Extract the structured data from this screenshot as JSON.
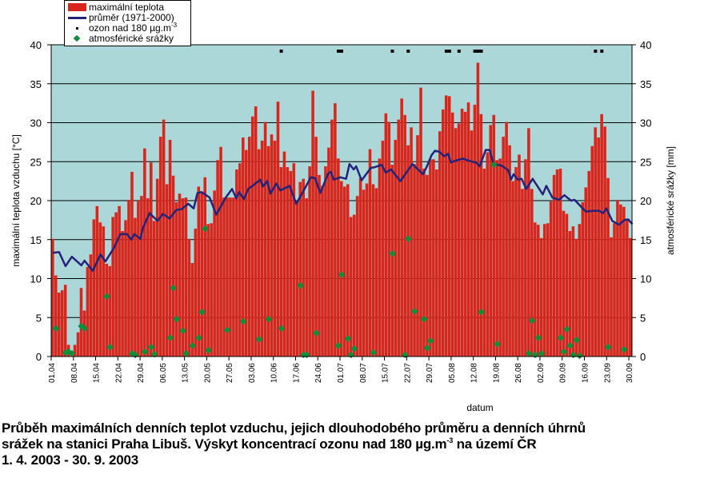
{
  "chart_data": {
    "type": "bar",
    "title": "",
    "xlabel": "datum",
    "ylabel": "maximální teplota vzduchu [°C]",
    "y2label": "atmosférické srážky [mm]",
    "ylim": [
      0,
      40
    ],
    "y2lim": [
      0,
      40
    ],
    "yticks": [
      "0",
      "5",
      "10",
      "15",
      "20",
      "25",
      "30",
      "35",
      "40"
    ],
    "grid": true,
    "legend_placement": "top-left",
    "colors": {
      "bars": "#d9261c",
      "avg": "#23237a",
      "ozone": "#000000",
      "precip": "#0b8f3a",
      "plot_bg": "#acd7d8"
    },
    "xtick_labels": [
      "01.04",
      "08.04",
      "15.04",
      "22.04",
      "29.04",
      "06.05",
      "13.05",
      "20.05",
      "27.05",
      "03.06",
      "10.06",
      "17.06",
      "24.06",
      "01.07",
      "08.07",
      "15.07",
      "22.07",
      "29.07",
      "05.08",
      "12.08",
      "19.08",
      "26.08",
      "02.09",
      "09.09",
      "16.09",
      "23.09",
      "30.09"
    ],
    "legend": {
      "max_temp": "maximální teplota",
      "avg": "průměr (1971-2000)",
      "ozone": "ozon nad 180 µg.m",
      "ozone_sup": "-3",
      "precip": "atmosférické srážky"
    },
    "max_temp": [
      15.1,
      10.4,
      8.2,
      8.5,
      9.2,
      1.5,
      0,
      1.5,
      3.1,
      8.8,
      5.9,
      11.5,
      13.1,
      17.6,
      19.3,
      17.2,
      16.7,
      11.9,
      11.6,
      17.9,
      18.5,
      19.3,
      16.1,
      17.5,
      20.1,
      23.7,
      17.8,
      20.0,
      20.6,
      26.7,
      20.3,
      24.9,
      17.4,
      22.8,
      28.2,
      30.4,
      22.1,
      27.8,
      23.2,
      19.8,
      20.9,
      20.3,
      20.4,
      15.1,
      12.0,
      16.4,
      21.8,
      21.1,
      23.0,
      17.0,
      17.1,
      21.3,
      25.2,
      26.9,
      20.4,
      20.4,
      20.4,
      20.4,
      24.0,
      24.8,
      28.1,
      26.5,
      28.2,
      30.8,
      32.1,
      26.6,
      27.7,
      30.1,
      27.0,
      28.5,
      27.7,
      32.7,
      24.3,
      26.3,
      24.3,
      23.8,
      24.8,
      19.8,
      22.4,
      22.8,
      20.3,
      24.4,
      34.1,
      28.2,
      23.3,
      21.9,
      24.4,
      26.8,
      30.4,
      32.5,
      25.4,
      22.5,
      21.8,
      22.1,
      17.9,
      18.2,
      20.6,
      22.9,
      21.4,
      22.2,
      26.6,
      22.1,
      21.6,
      25.4,
      27.7,
      31.2,
      30.1,
      24.6,
      27.8,
      30.4,
      33.1,
      31.0,
      27.1,
      29.4,
      24.7,
      28.4,
      34.5,
      24.1,
      23.3,
      25.3,
      25.3,
      24.0,
      28.9,
      31.7,
      33.5,
      33.4,
      31.3,
      29.3,
      29.9,
      31.8,
      31.4,
      32.6,
      29.0,
      32.3,
      37.7,
      31.1,
      24.1,
      26.2,
      29.7,
      31.0,
      25.2,
      25.4,
      28.2,
      30.1,
      27.1,
      22.5,
      24.3,
      25.9,
      21.5,
      25.3,
      29.3,
      21.5,
      17.2,
      16.9,
      15.2,
      17.0,
      17.1,
      19.9,
      23.3,
      24.0,
      24.1,
      18.7,
      18.3,
      16.1,
      16.7,
      15.1,
      17.0,
      19.8,
      21.7,
      23.8,
      27.0,
      29.4,
      28.1,
      31.1,
      29.5,
      22.9,
      15.3,
      17.1,
      20.1,
      19.5,
      19.2,
      17.6,
      15.2
    ],
    "avg_points": [
      [
        0,
        13.3
      ],
      [
        2,
        13.4
      ],
      [
        4,
        11.6
      ],
      [
        6,
        12.8
      ],
      [
        9,
        11.7
      ],
      [
        10,
        12.3
      ],
      [
        12.6,
        11.0
      ],
      [
        15,
        13.1
      ],
      [
        16.6,
        12.2
      ],
      [
        19.2,
        13.9
      ],
      [
        21.3,
        15.7
      ],
      [
        23.4,
        15.7
      ],
      [
        24.7,
        15.0
      ],
      [
        25.7,
        15.7
      ],
      [
        27.6,
        15.1
      ],
      [
        28.4,
        16.5
      ],
      [
        30.5,
        18.4
      ],
      [
        33,
        17.4
      ],
      [
        34.7,
        18.3
      ],
      [
        36.8,
        17.7
      ],
      [
        38.9,
        18.8
      ],
      [
        40.6,
        18.9
      ],
      [
        42.7,
        19.6
      ],
      [
        44.4,
        19.0
      ],
      [
        45.6,
        21.0
      ],
      [
        46.9,
        21.1
      ],
      [
        49.4,
        20.4
      ],
      [
        51.5,
        18.2
      ],
      [
        54.5,
        20.4
      ],
      [
        56.5,
        21.5
      ],
      [
        57.8,
        20.3
      ],
      [
        58.7,
        21.1
      ],
      [
        60.2,
        20.2
      ],
      [
        61.6,
        21.5
      ],
      [
        63.3,
        22.0
      ],
      [
        65.4,
        22.7
      ],
      [
        66.2,
        21.8
      ],
      [
        67.5,
        22.5
      ],
      [
        68.6,
        20.9
      ],
      [
        70.4,
        22.2
      ],
      [
        71.7,
        21.3
      ],
      [
        74.6,
        21.9
      ],
      [
        76.7,
        19.6
      ],
      [
        78.8,
        21.1
      ],
      [
        81.3,
        23.0
      ],
      [
        82.6,
        22.9
      ],
      [
        84.3,
        21.0
      ],
      [
        86.8,
        23.5
      ],
      [
        87.6,
        23.7
      ],
      [
        88.5,
        22.7
      ],
      [
        90.6,
        23.0
      ],
      [
        92.4,
        22.8
      ],
      [
        93.5,
        24.7
      ],
      [
        94.8,
        24.0
      ],
      [
        95.6,
        24.4
      ],
      [
        97.3,
        22.6
      ],
      [
        100.2,
        24.2
      ],
      [
        101.5,
        24.3
      ],
      [
        103.6,
        24.6
      ],
      [
        104.9,
        23.6
      ],
      [
        106.6,
        24.0
      ],
      [
        109.5,
        22.5
      ],
      [
        113.3,
        24.7
      ],
      [
        116.6,
        23.4
      ],
      [
        117.9,
        24.4
      ],
      [
        119.3,
        25.8
      ],
      [
        120.4,
        26.4
      ],
      [
        121.7,
        26.3
      ],
      [
        123.3,
        25.7
      ],
      [
        124.6,
        26.0
      ],
      [
        125.4,
        24.9
      ],
      [
        127.5,
        25.2
      ],
      [
        129.2,
        25.4
      ],
      [
        130.5,
        25.2
      ],
      [
        132.2,
        25.0
      ],
      [
        133.4,
        24.9
      ],
      [
        134.5,
        24.4
      ],
      [
        136.4,
        26.5
      ],
      [
        137.6,
        26.5
      ],
      [
        138.9,
        24.7
      ],
      [
        141.4,
        24.5
      ],
      [
        143.5,
        23.9
      ],
      [
        144.4,
        22.7
      ],
      [
        145.2,
        23.4
      ],
      [
        146.5,
        22.7
      ],
      [
        147.7,
        22.8
      ],
      [
        149.2,
        21.5
      ],
      [
        151.2,
        22.8
      ],
      [
        154.4,
        20.8
      ],
      [
        155.5,
        21.9
      ],
      [
        157.4,
        20.4
      ],
      [
        159.5,
        20.1
      ],
      [
        161.2,
        20.7
      ],
      [
        163.3,
        20.0
      ],
      [
        164.4,
        20.1
      ],
      [
        167.9,
        18.6
      ],
      [
        170.4,
        18.7
      ],
      [
        172.1,
        18.7
      ],
      [
        173.4,
        18.4
      ],
      [
        174.4,
        19.0
      ],
      [
        176.3,
        17.4
      ],
      [
        178.4,
        16.9
      ],
      [
        180.1,
        17.5
      ],
      [
        181.3,
        17.6
      ],
      [
        182.6,
        17.0
      ]
    ],
    "precip": [
      [
        1,
        3.6
      ],
      [
        4,
        0.5
      ],
      [
        5,
        0.6
      ],
      [
        6,
        0.4
      ],
      [
        9,
        3.9
      ],
      [
        10,
        3.6
      ],
      [
        17,
        7.7
      ],
      [
        18,
        1.2
      ],
      [
        25,
        0.4
      ],
      [
        26,
        0.2
      ],
      [
        29,
        0.6
      ],
      [
        31,
        1.2
      ],
      [
        32,
        0.3
      ],
      [
        37,
        2.4
      ],
      [
        38,
        8.8
      ],
      [
        39,
        4.8
      ],
      [
        41,
        3.3
      ],
      [
        42,
        0.4
      ],
      [
        44,
        1.4
      ],
      [
        46,
        2.4
      ],
      [
        47,
        5.7
      ],
      [
        48,
        16.4
      ],
      [
        49,
        0.8
      ],
      [
        55,
        3.4
      ],
      [
        60,
        4.5
      ],
      [
        65,
        2.2
      ],
      [
        68,
        4.8
      ],
      [
        72,
        3.6
      ],
      [
        78,
        9.1
      ],
      [
        79,
        0.2
      ],
      [
        80,
        0.2
      ],
      [
        83,
        3.0
      ],
      [
        90,
        1.4
      ],
      [
        91,
        10.5
      ],
      [
        93,
        2.3
      ],
      [
        94,
        0.2
      ],
      [
        95,
        1.0
      ],
      [
        101,
        0.5
      ],
      [
        107,
        13.2
      ],
      [
        111,
        0.2
      ],
      [
        112,
        15.1
      ],
      [
        114,
        5.8
      ],
      [
        117,
        4.8
      ],
      [
        118,
        1.1
      ],
      [
        119,
        2.0
      ],
      [
        135,
        5.7
      ],
      [
        139,
        24.6
      ],
      [
        140,
        1.6
      ],
      [
        150,
        0.4
      ],
      [
        151,
        4.6
      ],
      [
        152,
        0.2
      ],
      [
        153,
        2.4
      ],
      [
        154,
        0.4
      ],
      [
        160,
        2.4
      ],
      [
        161,
        0.6
      ],
      [
        162,
        3.5
      ],
      [
        163,
        1.4
      ],
      [
        164,
        0.2
      ],
      [
        165,
        2.1
      ],
      [
        166,
        0.1
      ],
      [
        175,
        1.2
      ],
      [
        180,
        0.9
      ]
    ],
    "ozone_days": [
      72,
      90,
      91,
      107,
      112,
      124,
      125,
      128,
      133,
      134,
      135,
      171,
      173
    ]
  },
  "caption": {
    "line1": "Průběh maximálních denních teplot vzduchu, jejich dlouhodobého průměru a denních úhrnů",
    "line2_a": "srážek na stanici Praha  Libuš. Výskyt koncentrací ozonu nad 180 µg.m",
    "line2_sup": "-3",
    "line2_b": " na území ČR",
    "line3": "1. 4. 2003 - 30. 9. 2003"
  }
}
